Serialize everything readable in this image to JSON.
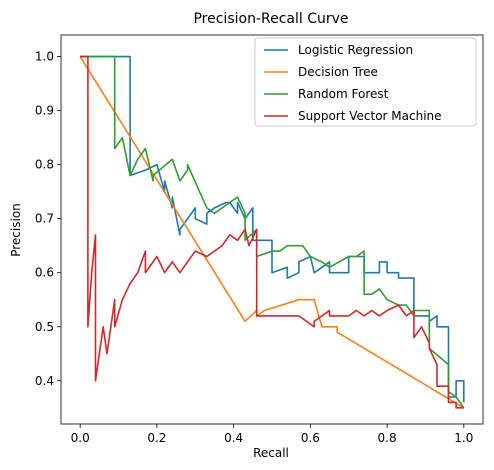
{
  "chart_data": {
    "type": "line",
    "title": "Precision-Recall Curve",
    "xlabel": "Recall",
    "ylabel": "Precision",
    "xlim": [
      -0.05,
      1.05
    ],
    "ylim": [
      0.32,
      1.04
    ],
    "xticks": [
      "0.0",
      "0.2",
      "0.4",
      "0.6",
      "0.8",
      "1.0"
    ],
    "xtick_values": [
      0,
      0.2,
      0.4,
      0.6,
      0.8,
      1.0
    ],
    "yticks": [
      "0.4",
      "0.5",
      "0.6",
      "0.7",
      "0.8",
      "0.9",
      "1.0"
    ],
    "ytick_values": [
      0.4,
      0.5,
      0.6,
      0.7,
      0.8,
      0.9,
      1.0
    ],
    "grid": false,
    "legend_position": "top-right",
    "series": [
      {
        "name": "Logistic Regression",
        "color": "#1f77b4",
        "x": [
          0.0,
          0.13,
          0.13,
          0.17,
          0.2,
          0.22,
          0.22,
          0.24,
          0.24,
          0.26,
          0.26,
          0.28,
          0.3,
          0.3,
          0.33,
          0.33,
          0.35,
          0.38,
          0.39,
          0.41,
          0.41,
          0.43,
          0.45,
          0.45,
          0.47,
          0.5,
          0.5,
          0.54,
          0.54,
          0.57,
          0.57,
          0.6,
          0.61,
          0.63,
          0.65,
          0.65,
          0.7,
          0.7,
          0.74,
          0.74,
          0.78,
          0.78,
          0.8,
          0.8,
          0.83,
          0.83,
          0.85,
          0.87,
          0.87,
          0.91,
          0.91,
          0.93,
          0.93,
          0.96,
          0.96,
          0.98,
          0.98,
          1.0,
          1.0
        ],
        "y": [
          1.0,
          1.0,
          0.78,
          0.79,
          0.8,
          0.75,
          0.77,
          0.72,
          0.74,
          0.67,
          0.68,
          0.7,
          0.72,
          0.7,
          0.69,
          0.71,
          0.72,
          0.73,
          0.73,
          0.71,
          0.73,
          0.7,
          0.72,
          0.66,
          0.66,
          0.66,
          0.6,
          0.61,
          0.59,
          0.6,
          0.62,
          0.63,
          0.6,
          0.61,
          0.62,
          0.6,
          0.6,
          0.63,
          0.63,
          0.6,
          0.6,
          0.62,
          0.62,
          0.6,
          0.6,
          0.59,
          0.59,
          0.59,
          0.52,
          0.52,
          0.51,
          0.52,
          0.5,
          0.5,
          0.37,
          0.37,
          0.4,
          0.4,
          0.36
        ]
      },
      {
        "name": "Decision Tree",
        "color": "#ff7f0e",
        "x": [
          0.0,
          0.43,
          0.46,
          0.46,
          0.48,
          0.57,
          0.61,
          0.63,
          0.65,
          0.67,
          0.67,
          1.0
        ],
        "y": [
          1.0,
          0.51,
          0.53,
          0.52,
          0.53,
          0.55,
          0.55,
          0.5,
          0.5,
          0.5,
          0.49,
          0.35
        ]
      },
      {
        "name": "Random Forest",
        "color": "#2ca02c",
        "x": [
          0.0,
          0.09,
          0.09,
          0.11,
          0.13,
          0.15,
          0.17,
          0.19,
          0.19,
          0.24,
          0.26,
          0.28,
          0.28,
          0.33,
          0.35,
          0.39,
          0.41,
          0.43,
          0.43,
          0.46,
          0.46,
          0.5,
          0.52,
          0.54,
          0.56,
          0.58,
          0.6,
          0.63,
          0.65,
          0.7,
          0.72,
          0.74,
          0.74,
          0.76,
          0.78,
          0.8,
          0.83,
          0.85,
          0.87,
          0.87,
          0.91,
          0.91,
          0.96,
          0.96,
          0.98,
          0.98,
          1.0
        ],
        "y": [
          1.0,
          1.0,
          0.83,
          0.85,
          0.78,
          0.81,
          0.83,
          0.77,
          0.78,
          0.81,
          0.77,
          0.79,
          0.8,
          0.72,
          0.71,
          0.73,
          0.74,
          0.71,
          0.66,
          0.68,
          0.63,
          0.64,
          0.64,
          0.65,
          0.65,
          0.65,
          0.63,
          0.62,
          0.61,
          0.63,
          0.63,
          0.64,
          0.56,
          0.56,
          0.57,
          0.55,
          0.54,
          0.54,
          0.52,
          0.53,
          0.53,
          0.46,
          0.43,
          0.38,
          0.37,
          0.37,
          0.35
        ]
      },
      {
        "name": "Support Vector Machine",
        "color": "#d62728",
        "x": [
          0.0,
          0.02,
          0.02,
          0.03,
          0.04,
          0.04,
          0.06,
          0.07,
          0.09,
          0.09,
          0.11,
          0.13,
          0.15,
          0.17,
          0.17,
          0.19,
          0.2,
          0.22,
          0.24,
          0.26,
          0.28,
          0.3,
          0.33,
          0.35,
          0.37,
          0.39,
          0.41,
          0.43,
          0.44,
          0.46,
          0.46,
          0.57,
          0.61,
          0.61,
          0.65,
          0.65,
          0.7,
          0.72,
          0.74,
          0.76,
          0.78,
          0.8,
          0.83,
          0.85,
          0.87,
          0.87,
          0.89,
          0.91,
          0.91,
          0.93,
          0.93,
          0.96,
          0.96,
          0.98,
          0.98,
          1.0
        ],
        "y": [
          1.0,
          1.0,
          0.5,
          0.6,
          0.67,
          0.4,
          0.5,
          0.45,
          0.55,
          0.5,
          0.55,
          0.58,
          0.6,
          0.64,
          0.6,
          0.62,
          0.63,
          0.6,
          0.62,
          0.6,
          0.62,
          0.64,
          0.63,
          0.64,
          0.65,
          0.67,
          0.66,
          0.68,
          0.65,
          0.68,
          0.52,
          0.52,
          0.5,
          0.51,
          0.53,
          0.52,
          0.52,
          0.53,
          0.52,
          0.53,
          0.52,
          0.53,
          0.54,
          0.52,
          0.53,
          0.48,
          0.5,
          0.47,
          0.46,
          0.43,
          0.39,
          0.39,
          0.36,
          0.36,
          0.35,
          0.35
        ]
      }
    ]
  }
}
